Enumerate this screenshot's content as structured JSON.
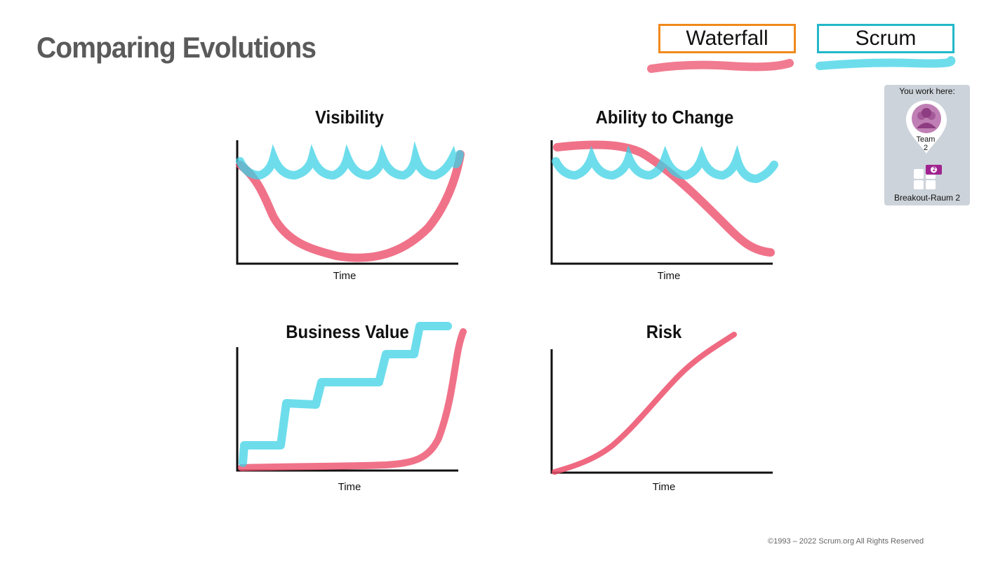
{
  "slide": {
    "title": "Comparing Evolutions",
    "footer": "©1993 – 2022 Scrum.org All Rights Reserved"
  },
  "legend": {
    "waterfall": "Waterfall",
    "scrum": "Scrum",
    "colors": {
      "waterfall_border": "#f08a1c",
      "scrum_border": "#22b8c9",
      "waterfall_line": "#ec4f6b",
      "scrum_line": "#3cd2e6"
    }
  },
  "breakout": {
    "you_work_here": "You work here:",
    "team": "Team",
    "team_number": "2",
    "badge": "2",
    "room": "Breakout-Raum 2"
  },
  "chart_data": [
    {
      "type": "line",
      "title": "Visibility",
      "xlabel": "Time",
      "series": [
        {
          "name": "Waterfall",
          "shape": "u-curve"
        },
        {
          "name": "Scrum",
          "shape": "scalloped-high"
        }
      ]
    },
    {
      "type": "line",
      "title": "Ability to Change",
      "xlabel": "Time",
      "series": [
        {
          "name": "Waterfall",
          "shape": "high-then-declining"
        },
        {
          "name": "Scrum",
          "shape": "scalloped-high"
        }
      ]
    },
    {
      "type": "line",
      "title": "Business Value",
      "xlabel": "Time",
      "series": [
        {
          "name": "Waterfall",
          "shape": "flat-then-spike"
        },
        {
          "name": "Scrum",
          "shape": "staircase-increasing"
        }
      ]
    },
    {
      "type": "line",
      "title": "Risk",
      "xlabel": "Time",
      "series": [
        {
          "name": "Waterfall",
          "shape": "steadily-increasing"
        }
      ]
    }
  ]
}
